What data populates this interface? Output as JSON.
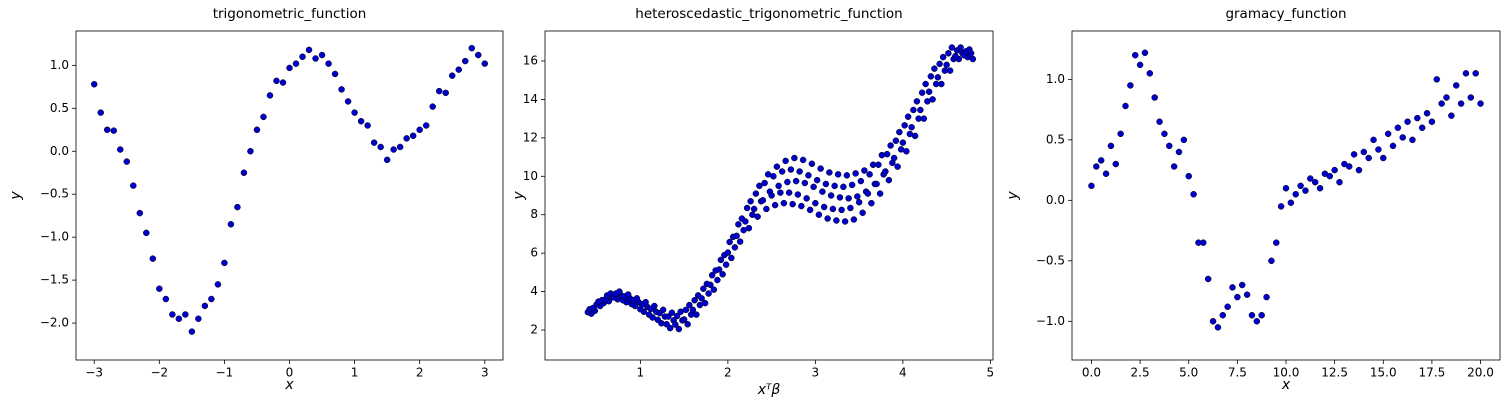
{
  "chart_data": [
    {
      "type": "scatter",
      "title": "trigonometric_function",
      "xlabel": "x",
      "ylabel": "y",
      "color": "#0000cc",
      "xlim": [
        -3.28,
        3.28
      ],
      "ylim": [
        -2.43,
        1.4
      ],
      "xticks": [
        {
          "value": -3,
          "label": "−3"
        },
        {
          "value": -2,
          "label": "−2"
        },
        {
          "value": -1,
          "label": "−1"
        },
        0,
        1,
        2,
        3
      ],
      "yticks": [
        {
          "value": -2,
          "label": "−2.0"
        },
        {
          "value": -1.5,
          "label": "−1.5"
        },
        {
          "value": -1,
          "label": "−1.0"
        },
        {
          "value": -0.5,
          "label": "−0.5"
        },
        {
          "value": 0,
          "label": "0.0"
        },
        0.5,
        {
          "value": 1,
          "label": "1.0"
        }
      ],
      "x": [
        -3,
        -2.9,
        -2.8,
        -2.7,
        -2.6,
        -2.5,
        -2.4,
        -2.3,
        -2.2,
        -2.1,
        -2,
        -1.9,
        -1.8,
        -1.7,
        -1.6,
        -1.5,
        -1.4,
        -1.3,
        -1.2,
        -1.1,
        -1,
        -0.9,
        -0.8,
        -0.7,
        -0.6,
        -0.5,
        -0.4,
        -0.3,
        -0.2,
        -0.1,
        0,
        0.1,
        0.2,
        0.3,
        0.4,
        0.5,
        0.6,
        0.7,
        0.8,
        0.9,
        1,
        1.1,
        1.2,
        1.3,
        1.4,
        1.5,
        1.6,
        1.7,
        1.8,
        1.9,
        2,
        2.1,
        2.2,
        2.3,
        2.4,
        2.5,
        2.6,
        2.7,
        2.8,
        2.9,
        3
      ],
      "values": [
        0.78,
        0.45,
        0.25,
        0.24,
        0.02,
        -0.12,
        -0.4,
        -0.72,
        -0.95,
        -1.25,
        -1.6,
        -1.72,
        -1.9,
        -1.95,
        -1.9,
        -2.1,
        -1.95,
        -1.8,
        -1.72,
        -1.55,
        -1.3,
        -0.85,
        -0.65,
        -0.25,
        0,
        0.25,
        0.4,
        0.65,
        0.82,
        0.8,
        0.97,
        1.02,
        1.1,
        1.18,
        1.08,
        1.12,
        1.02,
        0.9,
        0.72,
        0.58,
        0.45,
        0.35,
        0.3,
        0.1,
        0.05,
        -0.1,
        0.02,
        0.05,
        0.15,
        0.18,
        0.25,
        0.3,
        0.52,
        0.7,
        0.68,
        0.88,
        0.95,
        1.05,
        1.2,
        1.12,
        1.02
      ]
    },
    {
      "type": "scatter",
      "title": "heteroscedastic_trigonometric_function",
      "xlabel": "xᵀβ",
      "ylabel": "y",
      "color": "#0000cc",
      "xlim": [
        -0.09,
        5.03
      ],
      "ylim": [
        0.44,
        17.56
      ],
      "xticks": [
        1,
        2,
        3,
        4,
        5
      ],
      "yticks": [
        2,
        4,
        6,
        8,
        10,
        12,
        14,
        16
      ],
      "x": [
        0.44,
        0.4,
        0.48,
        0.42,
        0.46,
        0.54,
        0.5,
        0.58,
        0.52,
        0.56,
        0.64,
        0.6,
        0.68,
        0.62,
        0.66,
        0.74,
        0.7,
        0.78,
        0.72,
        0.76,
        0.84,
        0.8,
        0.88,
        0.82,
        0.86,
        0.94,
        0.9,
        0.98,
        0.92,
        0.96,
        1.04,
        1,
        1.08,
        1.02,
        1.06,
        1.14,
        1.1,
        1.18,
        1.12,
        1.16,
        1.24,
        1.2,
        1.28,
        1.22,
        1.26,
        1.34,
        1.3,
        1.38,
        1.32,
        1.36,
        1.44,
        1.4,
        1.48,
        1.42,
        1.46,
        1.54,
        1.5,
        1.58,
        1.52,
        1.56,
        1.64,
        1.6,
        1.68,
        1.62,
        1.66,
        1.74,
        1.7,
        1.78,
        1.72,
        1.76,
        1.84,
        1.8,
        1.88,
        1.82,
        1.86,
        1.94,
        1.9,
        1.98,
        1.92,
        1.96,
        2.04,
        2,
        2.08,
        2.02,
        2.06,
        2.14,
        2.1,
        2.18,
        2.12,
        2.16,
        2.24,
        2.2,
        2.28,
        2.22,
        2.26,
        2.34,
        2.3,
        2.38,
        2.32,
        2.36,
        2.44,
        2.4,
        2.48,
        2.42,
        2.46,
        2.54,
        2.5,
        2.58,
        2.52,
        2.56,
        2.64,
        2.6,
        2.68,
        2.62,
        2.66,
        2.74,
        2.7,
        2.78,
        2.72,
        2.76,
        2.84,
        2.8,
        2.88,
        2.82,
        2.86,
        2.94,
        2.9,
        2.98,
        2.92,
        2.96,
        3.04,
        3,
        3.08,
        3.02,
        3.06,
        3.14,
        3.1,
        3.18,
        3.12,
        3.16,
        3.24,
        3.2,
        3.28,
        3.22,
        3.26,
        3.34,
        3.3,
        3.38,
        3.32,
        3.36,
        3.44,
        3.4,
        3.48,
        3.42,
        3.46,
        3.54,
        3.5,
        3.58,
        3.52,
        3.56,
        3.64,
        3.6,
        3.68,
        3.62,
        3.66,
        3.74,
        3.7,
        3.78,
        3.72,
        3.76,
        3.84,
        3.8,
        3.88,
        3.82,
        3.86,
        3.94,
        3.9,
        3.98,
        3.92,
        3.96,
        4.04,
        4,
        4.08,
        4.02,
        4.06,
        4.14,
        4.1,
        4.18,
        4.12,
        4.16,
        4.24,
        4.2,
        4.28,
        4.22,
        4.26,
        4.34,
        4.3,
        4.38,
        4.32,
        4.36,
        4.44,
        4.4,
        4.48,
        4.42,
        4.46,
        4.54,
        4.5,
        4.58,
        4.52,
        4.56,
        4.64,
        4.6,
        4.68,
        4.62,
        4.66,
        4.74,
        4.7,
        4.78,
        4.72,
        4.76,
        4.8
      ],
      "values": [
        2.85,
        2.93,
        3,
        3.08,
        3.15,
        3.25,
        3.33,
        3.4,
        3.48,
        3.55,
        3.5,
        3.6,
        3.7,
        3.8,
        3.9,
        3.6,
        3.7,
        3.8,
        3.9,
        4,
        3.45,
        3.55,
        3.65,
        3.75,
        3.85,
        3.25,
        3.35,
        3.45,
        3.55,
        3.65,
        2.95,
        3.08,
        3.2,
        3.33,
        3.45,
        2.65,
        2.8,
        2.95,
        3.1,
        3.25,
        2.35,
        2.53,
        2.7,
        2.88,
        3.05,
        2.1,
        2.3,
        2.5,
        2.7,
        2.9,
        2.05,
        2.28,
        2.5,
        2.73,
        2.95,
        2.3,
        2.55,
        2.8,
        3.05,
        3.3,
        2.8,
        3.05,
        3.3,
        3.55,
        3.8,
        3.4,
        3.65,
        3.9,
        4.15,
        4.4,
        4.1,
        4.35,
        4.6,
        4.85,
        5.1,
        4.9,
        5.15,
        5.4,
        5.65,
        5.9,
        5.75,
        6.03,
        6.3,
        6.58,
        6.85,
        6.6,
        6.9,
        7.2,
        7.5,
        7.8,
        7.3,
        7.65,
        8,
        8.35,
        8.7,
        7.9,
        8.3,
        8.7,
        9.1,
        9.5,
        8.3,
        8.75,
        9.2,
        9.65,
        10.1,
        8.5,
        9,
        9.5,
        10,
        10.5,
        8.6,
        9.15,
        9.7,
        10.25,
        10.8,
        8.55,
        9.15,
        9.75,
        10.35,
        10.95,
        8.45,
        9.05,
        9.65,
        10.25,
        10.85,
        8.25,
        8.85,
        9.45,
        10.05,
        10.65,
        8,
        8.6,
        9.2,
        9.8,
        10.4,
        7.8,
        8.4,
        9,
        9.6,
        10.2,
        7.7,
        8.3,
        8.9,
        9.5,
        10.1,
        7.65,
        8.25,
        8.85,
        9.45,
        10.05,
        7.75,
        8.35,
        8.95,
        9.55,
        10.15,
        8.1,
        8.65,
        9.2,
        9.75,
        10.3,
        8.6,
        9.1,
        9.6,
        10.1,
        10.6,
        9.1,
        9.6,
        10.1,
        10.6,
        11.1,
        9.8,
        10.25,
        10.7,
        11.15,
        11.6,
        10.5,
        10.95,
        11.4,
        11.85,
        12.3,
        11.3,
        11.75,
        12.2,
        12.65,
        13.1,
        12.1,
        12.55,
        13,
        13.45,
        13.9,
        13,
        13.45,
        13.9,
        14.35,
        14.8,
        14,
        14.4,
        14.8,
        15.2,
        15.6,
        14.8,
        15.15,
        15.5,
        15.85,
        16.2,
        15.5,
        15.8,
        16.1,
        16.4,
        16.7,
        16.1,
        16.25,
        16.4,
        16.55,
        16.7,
        16.2,
        16.3,
        16.4,
        16.5,
        16.6,
        16.1
      ]
    },
    {
      "type": "scatter",
      "title": "gramacy_function",
      "xlabel": "x",
      "ylabel": "y",
      "color": "#0000cc",
      "xlim": [
        -1,
        21
      ],
      "ylim": [
        -1.32,
        1.4
      ],
      "xticks": [
        {
          "value": 0,
          "label": "0.0"
        },
        2.5,
        {
          "value": 5,
          "label": "5.0"
        },
        7.5,
        {
          "value": 10,
          "label": "10.0"
        },
        12.5,
        {
          "value": 15,
          "label": "15.0"
        },
        17.5,
        {
          "value": 20,
          "label": "20.0"
        }
      ],
      "yticks": [
        {
          "value": -1,
          "label": "−1.0"
        },
        {
          "value": -0.5,
          "label": "−0.5"
        },
        {
          "value": 0,
          "label": "0.0"
        },
        0.5,
        {
          "value": 1,
          "label": "1.0"
        }
      ],
      "x": [
        0,
        0.25,
        0.5,
        0.75,
        1,
        1.25,
        1.5,
        1.75,
        2,
        2.25,
        2.5,
        2.75,
        3,
        3.25,
        3.5,
        3.75,
        4,
        4.25,
        4.5,
        4.75,
        5,
        5.25,
        5.5,
        5.75,
        6,
        6.25,
        6.5,
        6.75,
        7,
        7.25,
        7.5,
        7.75,
        8,
        8.25,
        8.5,
        8.75,
        9,
        9.25,
        9.5,
        9.75,
        10,
        10.25,
        10.5,
        10.75,
        11,
        11.25,
        11.5,
        11.75,
        12,
        12.25,
        12.5,
        12.75,
        13,
        13.25,
        13.5,
        13.75,
        14,
        14.25,
        14.5,
        14.75,
        15,
        15.25,
        15.5,
        15.75,
        16,
        16.25,
        16.5,
        16.75,
        17,
        17.25,
        17.5,
        17.75,
        18,
        18.25,
        18.5,
        18.75,
        19,
        19.25,
        19.5,
        19.75,
        20
      ],
      "values": [
        0.12,
        0.28,
        0.33,
        0.22,
        0.45,
        0.3,
        0.55,
        0.78,
        0.95,
        1.2,
        1.12,
        1.22,
        1.05,
        0.85,
        0.65,
        0.55,
        0.45,
        0.28,
        0.4,
        0.5,
        0.2,
        0.05,
        -0.35,
        -0.35,
        -0.65,
        -1,
        -1.05,
        -0.95,
        -0.88,
        -0.72,
        -0.8,
        -0.7,
        -0.78,
        -0.95,
        -1,
        -0.95,
        -0.8,
        -0.5,
        -0.35,
        -0.05,
        0.1,
        -0.02,
        0.05,
        0.12,
        0.08,
        0.18,
        0.15,
        0.1,
        0.22,
        0.2,
        0.25,
        0.15,
        0.3,
        0.28,
        0.38,
        0.25,
        0.4,
        0.35,
        0.5,
        0.42,
        0.35,
        0.55,
        0.45,
        0.6,
        0.52,
        0.65,
        0.5,
        0.68,
        0.6,
        0.72,
        0.65,
        1,
        0.8,
        0.85,
        0.7,
        0.95,
        0.8,
        1.05,
        0.85,
        1.05,
        0.8
      ]
    }
  ]
}
